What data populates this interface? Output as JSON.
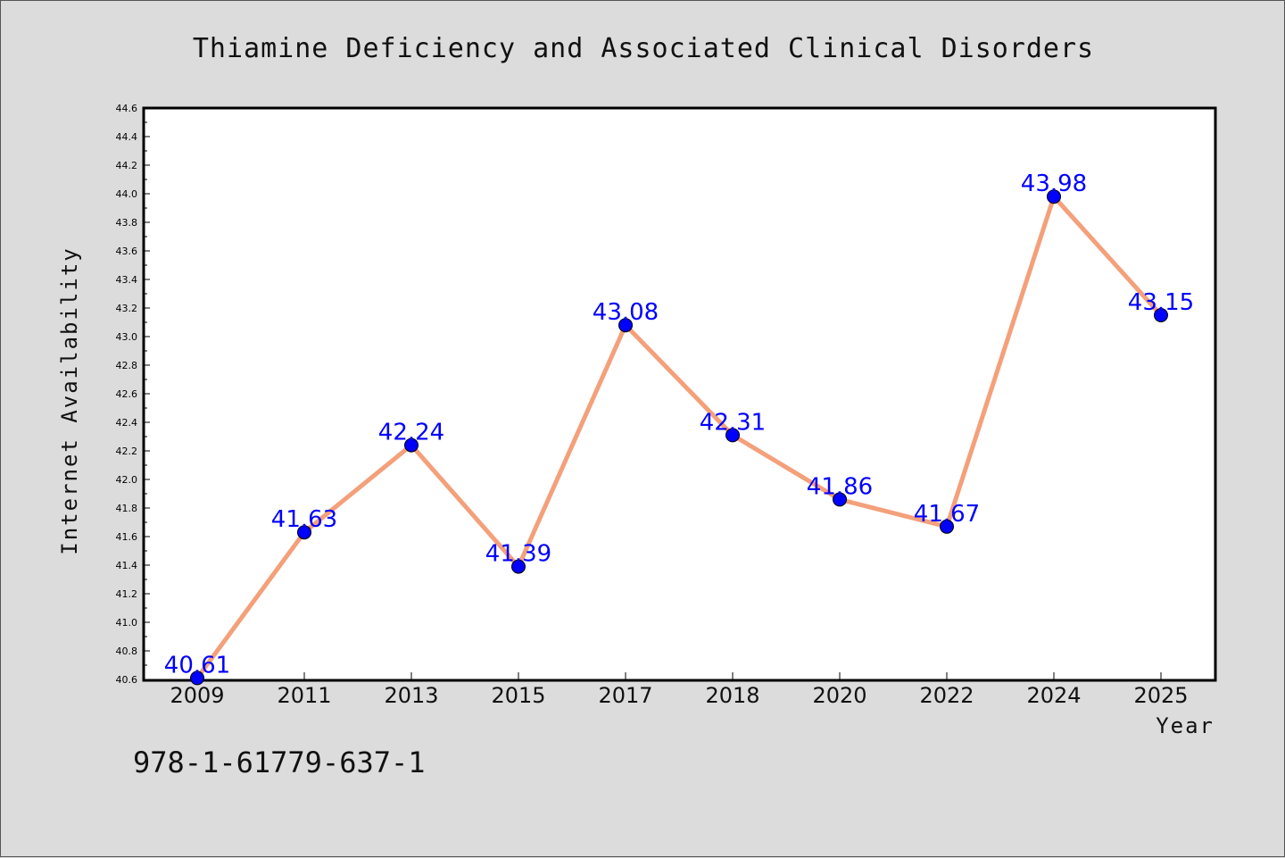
{
  "chart_data": {
    "type": "line",
    "title": "Thiamine Deficiency and Associated Clinical Disorders",
    "xlabel": "Year",
    "ylabel": "Internet Availability",
    "categories": [
      "2009",
      "2011",
      "2013",
      "2015",
      "2017",
      "2018",
      "2020",
      "2022",
      "2024",
      "2025"
    ],
    "values": [
      40.61,
      41.63,
      42.24,
      41.39,
      43.08,
      42.31,
      41.86,
      41.67,
      43.98,
      43.15
    ],
    "data_labels": [
      "40.61",
      "41.63",
      "42.24",
      "41.39",
      "43.08",
      "42.31",
      "41.86",
      "41.67",
      "43.98",
      "43.15"
    ],
    "ylim": [
      40.6,
      44.6
    ],
    "yticks": [
      "40.6",
      "40.8",
      "41.0",
      "41.2",
      "41.4",
      "41.6",
      "41.8",
      "42.0",
      "42.2",
      "42.4",
      "42.6",
      "42.8",
      "43.0",
      "43.2",
      "43.4",
      "43.6",
      "43.8",
      "44.0",
      "44.2",
      "44.4",
      "44.6"
    ],
    "grid": false,
    "colors": {
      "line": "#f4a07a",
      "marker": "#0000ff",
      "label": "#0000ff",
      "plot_bg": "#ffffff",
      "page_bg": "#dcdcdc"
    }
  },
  "footer": {
    "isbn": "978-1-61779-637-1"
  }
}
